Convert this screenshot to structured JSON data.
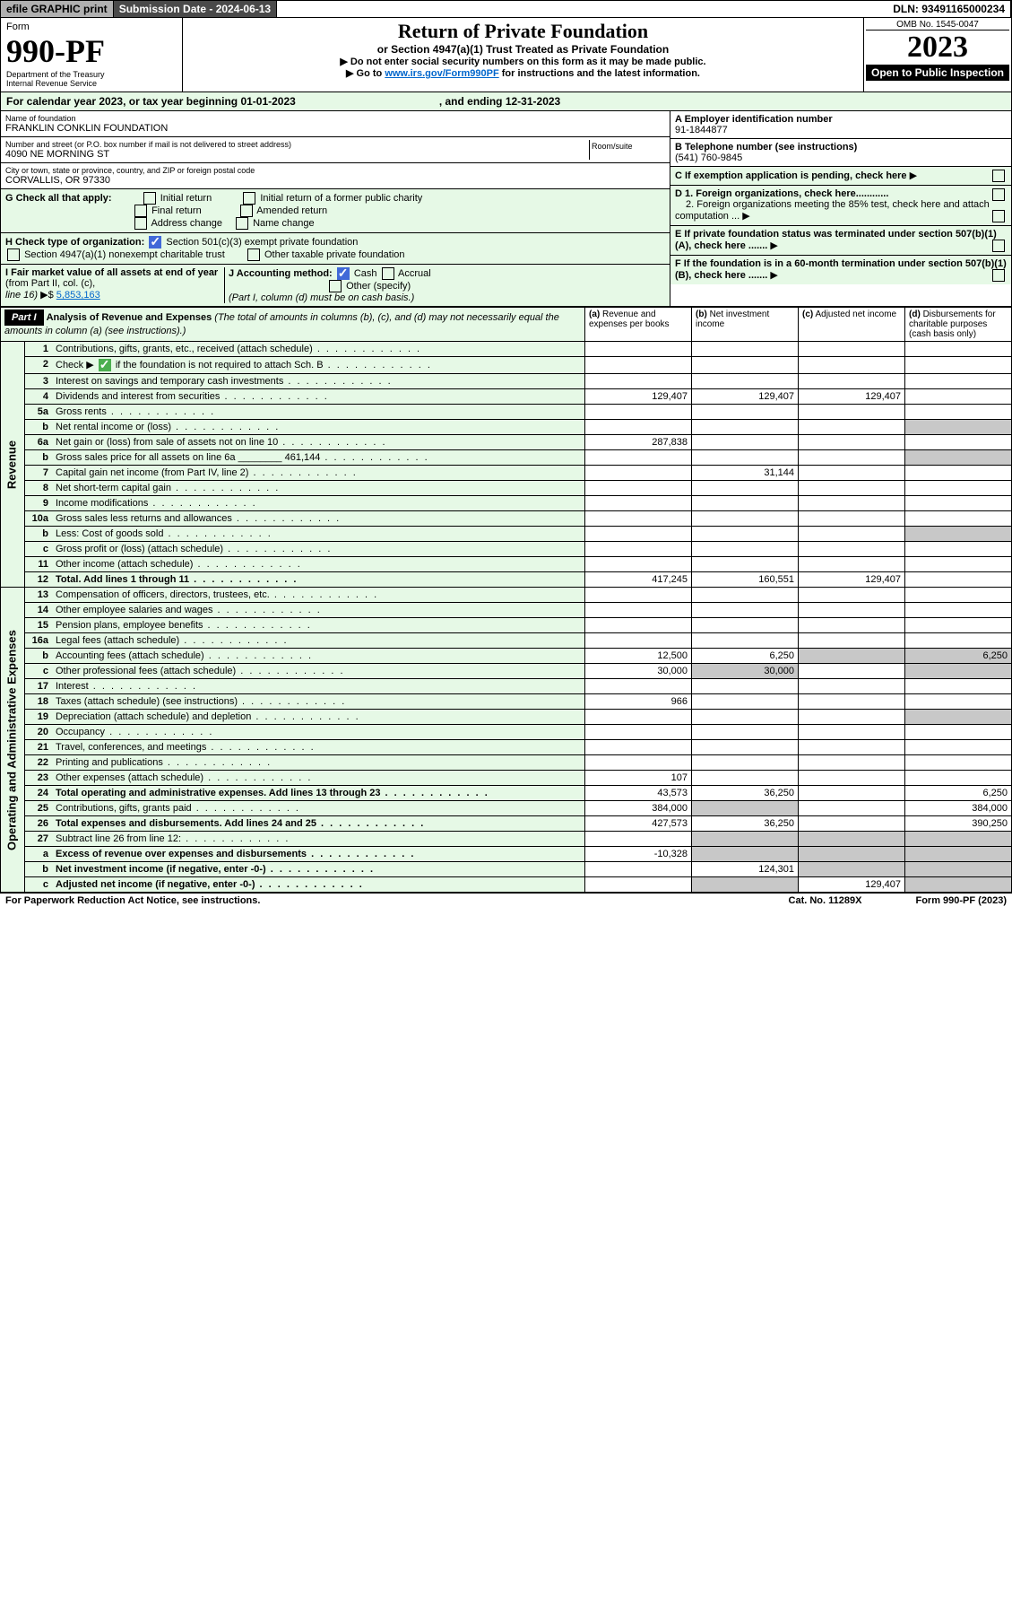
{
  "top": {
    "efile": "efile GRAPHIC print",
    "sub": "Submission Date - 2024-06-13",
    "dln": "DLN: 93491165000234"
  },
  "hdr": {
    "form": "Form",
    "num": "990-PF",
    "dept": "Department of the Treasury",
    "irs": "Internal Revenue Service",
    "title": "Return of Private Foundation",
    "sub": "or Section 4947(a)(1) Trust Treated as Private Foundation",
    "i1": "▶ Do not enter social security numbers on this form as it may be made public.",
    "i2": "▶ Go to",
    "link": "www.irs.gov/Form990PF",
    "i3": "for instructions and the latest information.",
    "omb": "OMB No. 1545-0047",
    "year": "2023",
    "open": "Open to Public Inspection"
  },
  "cal": {
    "a": "For calendar year 2023, or tax year beginning 01-01-2023",
    "b": ", and ending 12-31-2023"
  },
  "id": {
    "nameL": "Name of foundation",
    "name": "FRANKLIN CONKLIN FOUNDATION",
    "streetL": "Number and street (or P.O. box number if mail is not delivered to street address)",
    "street": "4090 NE MORNING ST",
    "room": "Room/suite",
    "cityL": "City or town, state or province, country, and ZIP or foreign postal code",
    "city": "CORVALLIS, OR  97330",
    "einL": "A Employer identification number",
    "ein": "91-1844877",
    "telL": "B Telephone number (see instructions)",
    "tel": "(541) 760-9845",
    "cL": "C If exemption application is pending, check here",
    "d1": "D 1. Foreign organizations, check here............",
    "d2": "2. Foreign organizations meeting the 85% test, check here and attach computation ...",
    "eL": "E  If private foundation status was terminated under section 507(b)(1)(A), check here .......",
    "fL": "F  If the foundation is in a 60-month termination under section 507(b)(1)(B), check here ......."
  },
  "g": {
    "l": "G Check all that apply:",
    "o": [
      "Initial return",
      "Final return",
      "Address change",
      "Initial return of a former public charity",
      "Amended return",
      "Name change"
    ]
  },
  "h": {
    "l": "H Check type of organization:",
    "o1": "Section 501(c)(3) exempt private foundation",
    "o2": "Section 4947(a)(1) nonexempt charitable trust",
    "o3": "Other taxable private foundation"
  },
  "i": {
    "l": "I Fair market value of all assets at end of year",
    "l2": "(from Part II, col. (c),",
    "l3": "line 16)",
    "v": "5,853,163"
  },
  "j": {
    "l": "J Accounting method:",
    "o": [
      "Cash",
      "Accrual",
      "Other (specify)"
    ],
    "n": "(Part I, column (d) must be on cash basis.)"
  },
  "p1": {
    "t": "Part I",
    "h": "Analysis of Revenue and Expenses",
    "n": "(The total of amounts in columns (b), (c), and (d) may not necessarily equal the amounts in column (a) (see instructions).)",
    "c": [
      "(a)",
      "Revenue and expenses per books",
      "(b)",
      "Net investment income",
      "(c)",
      "Adjusted net income",
      "(d)",
      "Disbursements for charitable purposes (cash basis only)"
    ]
  },
  "rev": {
    "side": "Revenue",
    "rows": [
      {
        "n": "1",
        "l": "Contributions, gifts, grants, etc., received (attach schedule)"
      },
      {
        "n": "2",
        "l": "Check ▶",
        "l2": " if the foundation is not required to attach Sch. B",
        "chk": 1
      },
      {
        "n": "3",
        "l": "Interest on savings and temporary cash investments"
      },
      {
        "n": "4",
        "l": "Dividends and interest from securities",
        "a": "129,407",
        "b": "129,407",
        "c": "129,407"
      },
      {
        "n": "5a",
        "l": "Gross rents"
      },
      {
        "n": "b",
        "l": "Net rental income or (loss)"
      },
      {
        "n": "6a",
        "l": "Net gain or (loss) from sale of assets not on line 10",
        "a": "287,838"
      },
      {
        "n": "b",
        "l": "Gross sales price for all assets on line 6a",
        "v": "461,144"
      },
      {
        "n": "7",
        "l": "Capital gain net income (from Part IV, line 2)",
        "b": "31,144"
      },
      {
        "n": "8",
        "l": "Net short-term capital gain"
      },
      {
        "n": "9",
        "l": "Income modifications"
      },
      {
        "n": "10a",
        "l": "Gross sales less returns and allowances"
      },
      {
        "n": "b",
        "l": "Less: Cost of goods sold"
      },
      {
        "n": "c",
        "l": "Gross profit or (loss) (attach schedule)"
      },
      {
        "n": "11",
        "l": "Other income (attach schedule)"
      },
      {
        "n": "12",
        "l": "Total. Add lines 1 through 11",
        "a": "417,245",
        "b": "160,551",
        "c": "129,407",
        "bold": 1
      }
    ]
  },
  "exp": {
    "side": "Operating and Administrative Expenses",
    "rows": [
      {
        "n": "13",
        "l": "Compensation of officers, directors, trustees, etc."
      },
      {
        "n": "14",
        "l": "Other employee salaries and wages"
      },
      {
        "n": "15",
        "l": "Pension plans, employee benefits"
      },
      {
        "n": "16a",
        "l": "Legal fees (attach schedule)"
      },
      {
        "n": "b",
        "l": "Accounting fees (attach schedule)",
        "a": "12,500",
        "b": "6,250",
        "d": "6,250"
      },
      {
        "n": "c",
        "l": "Other professional fees (attach schedule)",
        "a": "30,000",
        "b": "30,000"
      },
      {
        "n": "17",
        "l": "Interest"
      },
      {
        "n": "18",
        "l": "Taxes (attach schedule) (see instructions)",
        "a": "966"
      },
      {
        "n": "19",
        "l": "Depreciation (attach schedule) and depletion"
      },
      {
        "n": "20",
        "l": "Occupancy"
      },
      {
        "n": "21",
        "l": "Travel, conferences, and meetings"
      },
      {
        "n": "22",
        "l": "Printing and publications"
      },
      {
        "n": "23",
        "l": "Other expenses (attach schedule)",
        "a": "107"
      },
      {
        "n": "24",
        "l": "Total operating and administrative expenses. Add lines 13 through 23",
        "a": "43,573",
        "b": "36,250",
        "d": "6,250",
        "bold": 1
      },
      {
        "n": "25",
        "l": "Contributions, gifts, grants paid",
        "a": "384,000",
        "d": "384,000"
      },
      {
        "n": "26",
        "l": "Total expenses and disbursements. Add lines 24 and 25",
        "a": "427,573",
        "b": "36,250",
        "d": "390,250",
        "bold": 1
      },
      {
        "n": "27",
        "l": "Subtract line 26 from line 12:"
      },
      {
        "n": "a",
        "l": "Excess of revenue over expenses and disbursements",
        "a": "-10,328",
        "bold": 1
      },
      {
        "n": "b",
        "l": "Net investment income (if negative, enter -0-)",
        "b": "124,301",
        "bold": 1
      },
      {
        "n": "c",
        "l": "Adjusted net income (if negative, enter -0-)",
        "c": "129,407",
        "bold": 1
      }
    ]
  },
  "ft": {
    "a": "For Paperwork Reduction Act Notice, see instructions.",
    "b": "Cat. No. 11289X",
    "c": "Form 990-PF (2023)"
  }
}
